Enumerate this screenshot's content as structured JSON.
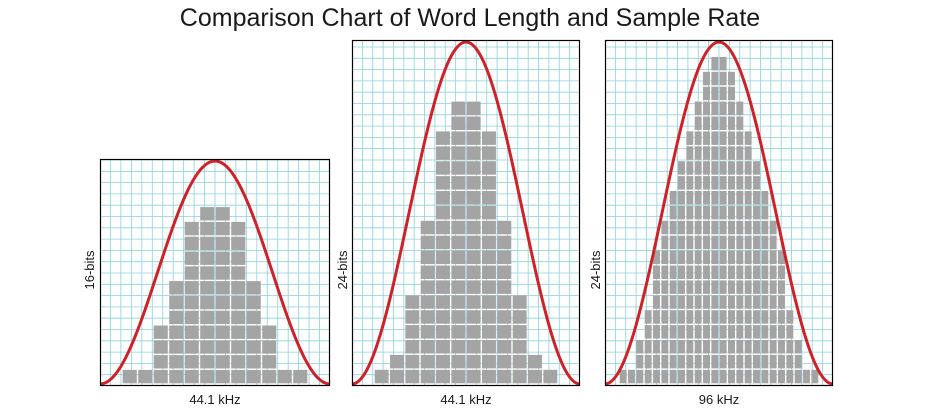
{
  "title": "Comparison Chart of Word Length and Sample Rate",
  "colors": {
    "grid": "#8fd0dc",
    "frame": "#000000",
    "bar": "#a4a4a4",
    "curve": "#cc2229"
  },
  "panels": [
    {
      "x_label": "44.1 kHz",
      "y_label": "16-bits",
      "columns": [
        0.0,
        0.1,
        0.3,
        0.5,
        0.8,
        0.9,
        0.9,
        0.8,
        0.5,
        0.3,
        0.1,
        0.0
      ]
    },
    {
      "x_label": "44.1 kHz",
      "y_label": "24-bits",
      "columns": [
        0.0,
        0.1,
        0.3,
        0.5,
        0.8,
        0.9,
        0.9,
        0.8,
        0.5,
        0.3,
        0.1,
        0.0
      ]
    },
    {
      "x_label": "96 kHz",
      "y_label": "24-bits",
      "columns": [
        0.0,
        0.05,
        0.15,
        0.25,
        0.4,
        0.5,
        0.6,
        0.7,
        0.8,
        0.9,
        0.95,
        1.0,
        1.0,
        0.95,
        0.9,
        0.8,
        0.7,
        0.6,
        0.5,
        0.4,
        0.25,
        0.15,
        0.05,
        0.0
      ]
    }
  ]
}
